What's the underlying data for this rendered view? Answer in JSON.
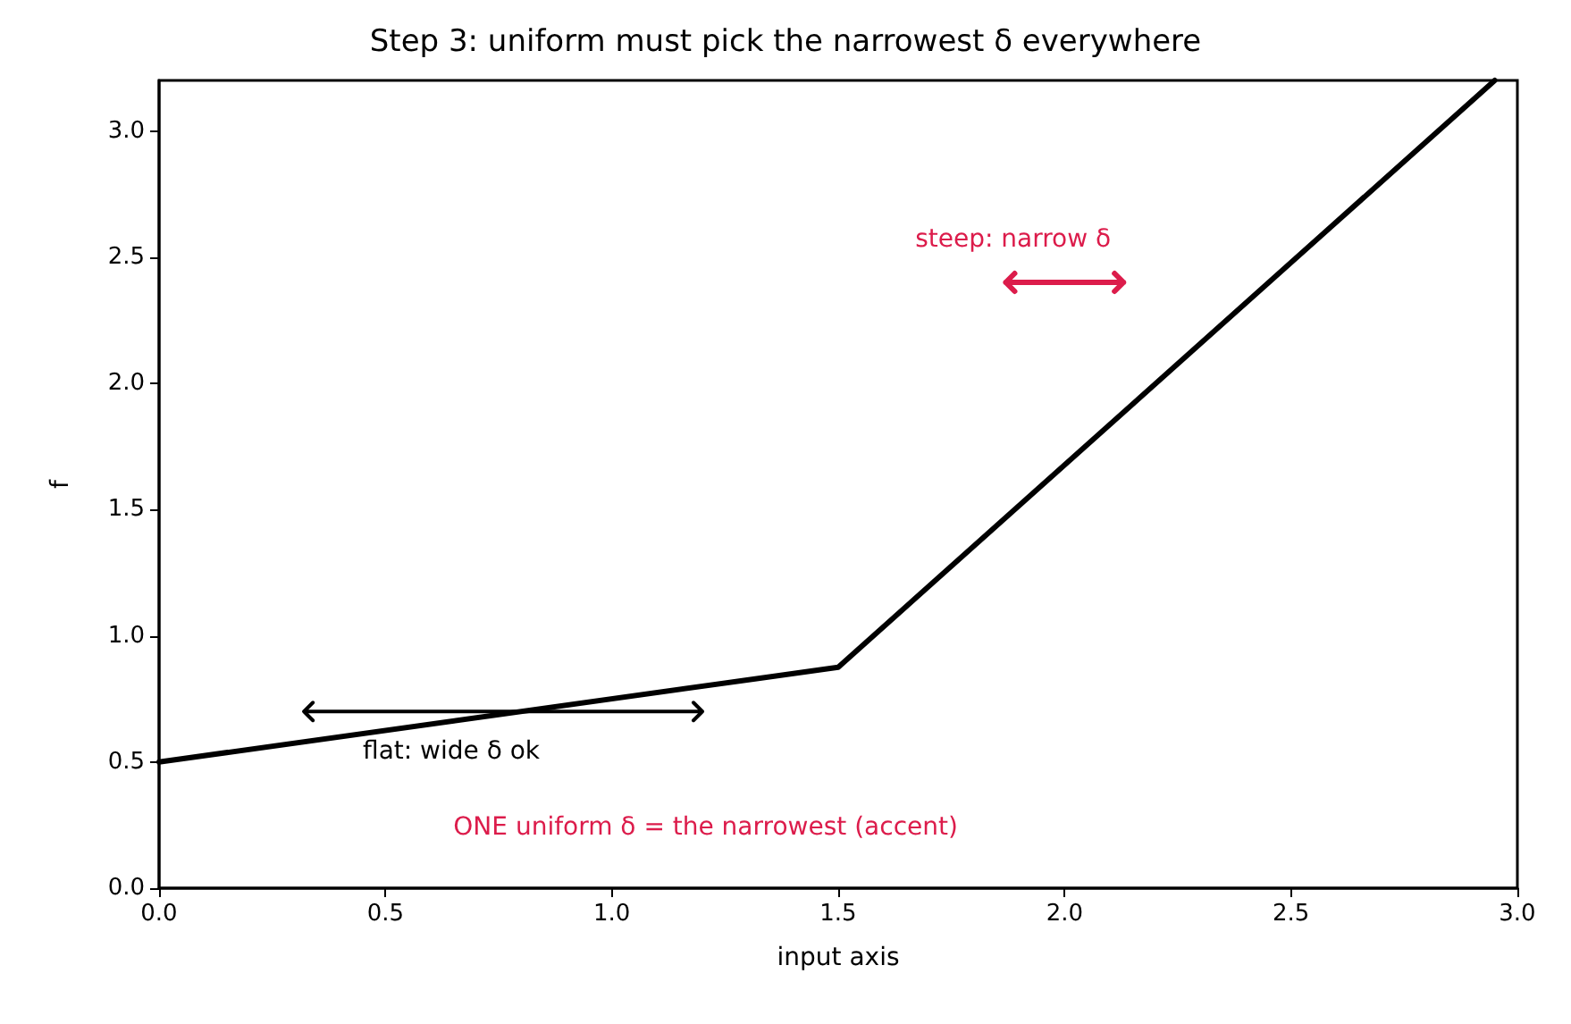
{
  "chart_data": {
    "type": "line",
    "title": "Step 3: uniform must pick the narrowest δ everywhere",
    "xlabel": "input axis",
    "ylabel": "f",
    "x": [
      0,
      1.5,
      2.95
    ],
    "series": [
      {
        "color": "#000000",
        "values": [
          0.5,
          0.875,
          3.2
        ]
      }
    ],
    "xlim": [
      0,
      3
    ],
    "ylim": [
      0,
      3.2
    ],
    "xticks": [
      {
        "value": 0,
        "label": "0.0"
      },
      {
        "value": 0.5,
        "label": "0.5"
      },
      {
        "value": 1,
        "label": "1.0"
      },
      {
        "value": 1.5,
        "label": "1.5"
      },
      {
        "value": 2,
        "label": "2.0"
      },
      {
        "value": 2.5,
        "label": "2.5"
      },
      {
        "value": 3,
        "label": "3.0"
      }
    ],
    "yticks": [
      {
        "value": 0,
        "label": "0.0"
      },
      {
        "value": 0.5,
        "label": "0.5"
      },
      {
        "value": 1,
        "label": "1.0"
      },
      {
        "value": 1.5,
        "label": "1.5"
      },
      {
        "value": 2,
        "label": "2.0"
      },
      {
        "value": 2.5,
        "label": "2.5"
      },
      {
        "value": 3,
        "label": "3.0"
      }
    ],
    "annotations": [
      "steep: narrow δ",
      "flat: wide δ ok",
      "ONE uniform δ = the narrowest (accent)"
    ],
    "grid": false,
    "marker": "none",
    "line_style": "solid"
  }
}
